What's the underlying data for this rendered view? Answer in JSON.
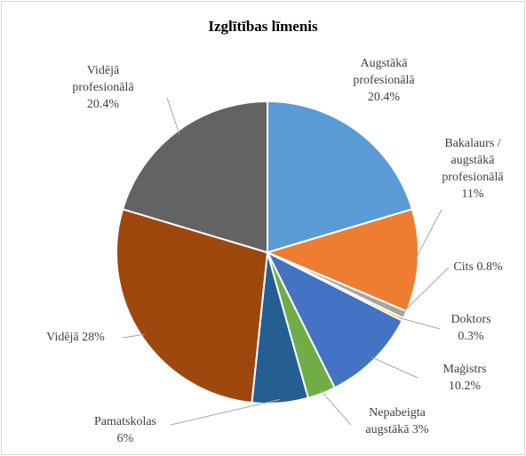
{
  "chart_data": {
    "type": "pie",
    "title": "Izglītības līmenis",
    "categories": [
      "Augstākā profesionālā",
      "Bakalaurs / augstākā profesionālā",
      "Cits",
      "Doktors",
      "Maģistrs",
      "Nepabeigta augstākā",
      "Pamatskolas",
      "Vidējā",
      "Vidējā profesionālā"
    ],
    "values": [
      20.4,
      11,
      0.8,
      0.3,
      10.2,
      3,
      6,
      28,
      20.4
    ],
    "value_labels": [
      "20.4%",
      "11%",
      "0.8%",
      "0.3%",
      "10.2%",
      "3%",
      "6%",
      "28%",
      "20.4%"
    ],
    "colors": [
      "#5b9bd5",
      "#ed7d31",
      "#a5a5a5",
      "#ffc000",
      "#4472c4",
      "#70ad47",
      "#255e91",
      "#9e480e",
      "#636363"
    ]
  }
}
